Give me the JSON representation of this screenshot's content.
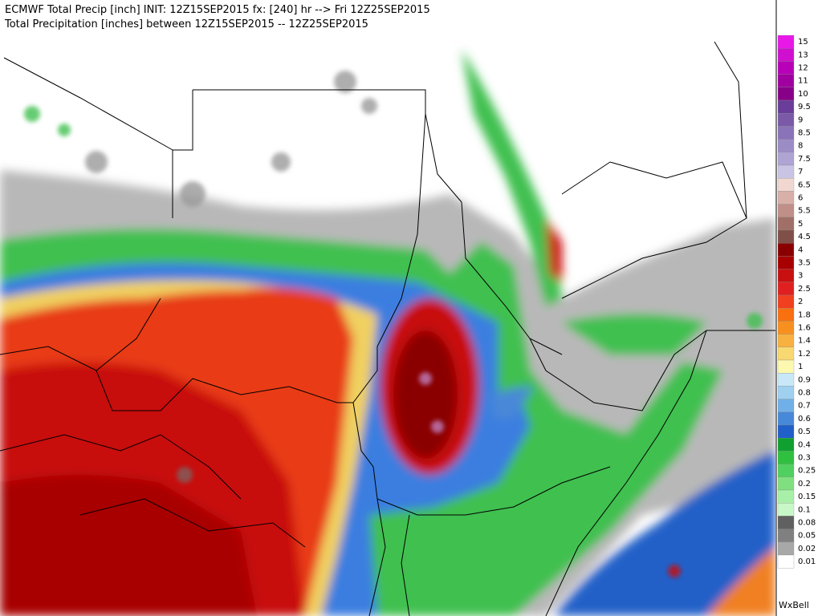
{
  "title": "ECMWF Total Precip [inch] INIT: 12Z15SEP2015 fx: [240] hr --> Fri 12Z25SEP2015",
  "subtitle": "Total Precipitation [inches] between 12Z15SEP2015 -- 12Z25SEP2015",
  "credit": "WxBell",
  "legend": [
    {
      "label": "15",
      "color": "#e818e8"
    },
    {
      "label": "13",
      "color": "#d010d0"
    },
    {
      "label": "12",
      "color": "#b800b8"
    },
    {
      "label": "11",
      "color": "#a000a0"
    },
    {
      "label": "10",
      "color": "#880088"
    },
    {
      "label": "9.5",
      "color": "#6a3d9a"
    },
    {
      "label": "9",
      "color": "#7a5aa8"
    },
    {
      "label": "8.5",
      "color": "#8a73b8"
    },
    {
      "label": "8",
      "color": "#9c8cc6"
    },
    {
      "label": "7.5",
      "color": "#b0a4d4"
    },
    {
      "label": "7",
      "color": "#cac4e4"
    },
    {
      "label": "6.5",
      "color": "#f0d8d0"
    },
    {
      "label": "6",
      "color": "#d8b0a8"
    },
    {
      "label": "5.5",
      "color": "#c09088"
    },
    {
      "label": "5",
      "color": "#a07068"
    },
    {
      "label": "4.5",
      "color": "#805048"
    },
    {
      "label": "4",
      "color": "#8a0000"
    },
    {
      "label": "3.5",
      "color": "#a80000"
    },
    {
      "label": "3",
      "color": "#c81010"
    },
    {
      "label": "2.5",
      "color": "#e02020"
    },
    {
      "label": "2",
      "color": "#f04020"
    },
    {
      "label": "1.8",
      "color": "#f87010"
    },
    {
      "label": "1.6",
      "color": "#f89020"
    },
    {
      "label": "1.4",
      "color": "#f8b040"
    },
    {
      "label": "1.2",
      "color": "#f8d870"
    },
    {
      "label": "1",
      "color": "#fcf8b0"
    },
    {
      "label": "0.9",
      "color": "#c8e8f8"
    },
    {
      "label": "0.8",
      "color": "#a0d0f0"
    },
    {
      "label": "0.7",
      "color": "#70b0e8"
    },
    {
      "label": "0.6",
      "color": "#4888d8"
    },
    {
      "label": "0.5",
      "color": "#2060c8"
    },
    {
      "label": "0.4",
      "color": "#10a030"
    },
    {
      "label": "0.3",
      "color": "#30c040"
    },
    {
      "label": "0.25",
      "color": "#50d060"
    },
    {
      "label": "0.2",
      "color": "#80e080"
    },
    {
      "label": "0.15",
      "color": "#a8f0a8"
    },
    {
      "label": "0.1",
      "color": "#c8f8c8"
    },
    {
      "label": "0.08",
      "color": "#606060"
    },
    {
      "label": "0.05",
      "color": "#808080"
    },
    {
      "label": "0.02",
      "color": "#a8a8a8"
    },
    {
      "label": "0.01",
      "color": "#ffffff"
    }
  ]
}
